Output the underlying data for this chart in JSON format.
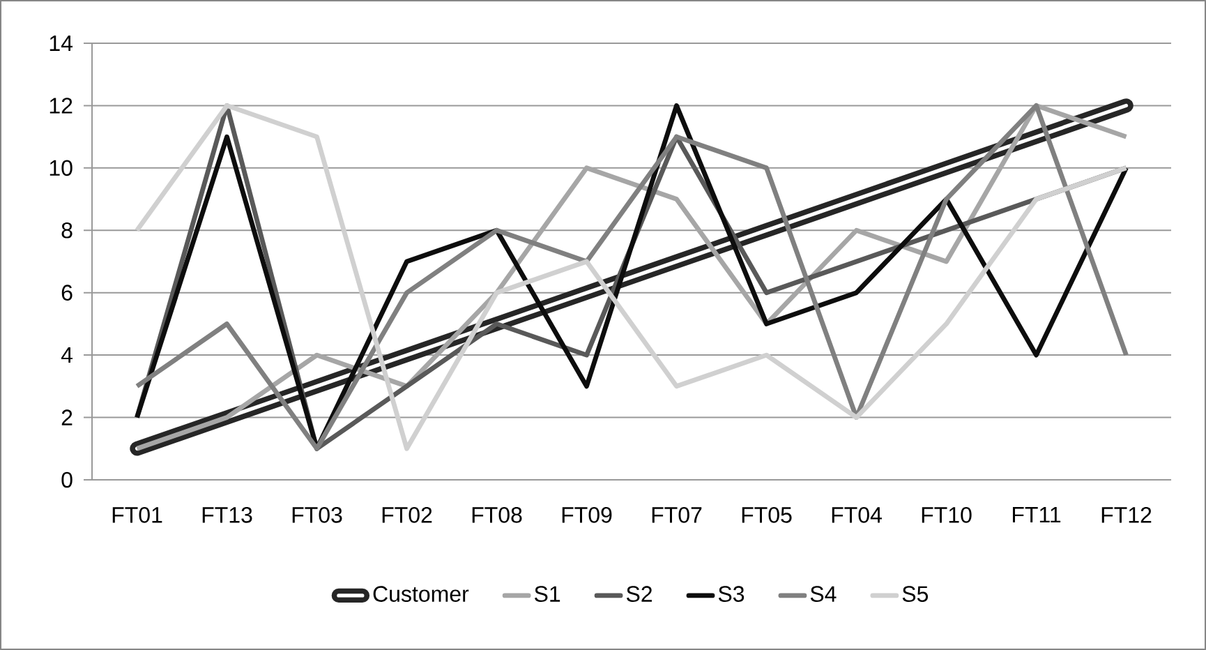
{
  "chart_data": {
    "type": "line",
    "categories": [
      "FT01",
      "FT13",
      "FT03",
      "FT02",
      "FT08",
      "FT09",
      "FT07",
      "FT05",
      "FT04",
      "FT10",
      "FT11",
      "FT12"
    ],
    "series": [
      {
        "name": "Customer",
        "color": "#262626",
        "values": [
          1,
          2,
          3,
          4,
          5,
          6,
          7,
          8,
          9,
          10,
          11,
          12
        ]
      },
      {
        "name": "S1",
        "color": "#a6a6a6",
        "values": [
          1,
          2,
          4,
          3,
          6,
          10,
          9,
          5,
          8,
          7,
          12,
          11
        ]
      },
      {
        "name": "S2",
        "color": "#595959",
        "values": [
          2,
          12,
          1,
          3,
          5,
          4,
          11,
          6,
          7,
          8,
          9,
          10
        ]
      },
      {
        "name": "S3",
        "color": "#0d0d0d",
        "values": [
          2,
          11,
          1,
          7,
          8,
          3,
          12,
          5,
          6,
          9,
          4,
          10
        ]
      },
      {
        "name": "S4",
        "color": "#808080",
        "values": [
          3,
          5,
          1,
          6,
          8,
          7,
          11,
          10,
          2,
          9,
          12,
          4
        ]
      },
      {
        "name": "S5",
        "color": "#d0d0d0",
        "values": [
          8,
          12,
          11,
          1,
          6,
          7,
          3,
          4,
          2,
          5,
          9,
          10
        ]
      }
    ],
    "ylim": [
      0,
      14
    ],
    "yticks": [
      0,
      2,
      4,
      6,
      8,
      10,
      12,
      14
    ],
    "grid": "y",
    "legend": "bottom",
    "line_style": "solid"
  }
}
